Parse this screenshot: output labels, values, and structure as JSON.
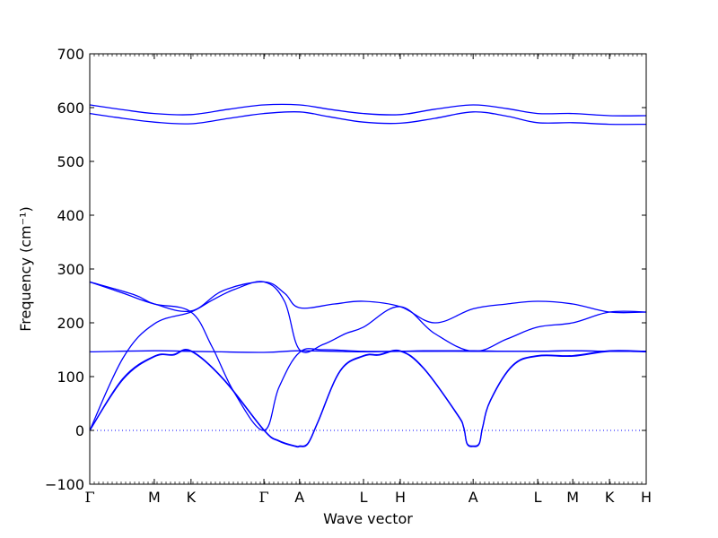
{
  "chart_data": {
    "type": "line",
    "title": "",
    "xlabel": "Wave vector",
    "ylabel": "Frequency (cm⁻¹)",
    "ylim": [
      -100,
      700
    ],
    "yticks": [
      -100,
      0,
      100,
      200,
      300,
      400,
      500,
      600,
      700
    ],
    "x_range": [
      0,
      1
    ],
    "high_symmetry_points": [
      {
        "label": "Γ",
        "x": 0.0
      },
      {
        "label": "M",
        "x": 0.116
      },
      {
        "label": "K",
        "x": 0.182
      },
      {
        "label": "Γ",
        "x": 0.313
      },
      {
        "label": "A",
        "x": 0.377
      },
      {
        "label": "L",
        "x": 0.492
      },
      {
        "label": "H",
        "x": 0.558
      },
      {
        "label": "A",
        "x": 0.689
      },
      {
        "label": "L",
        "x": 0.805
      },
      {
        "label": "M",
        "x": 0.868
      },
      {
        "label": "K",
        "x": 0.934
      },
      {
        "label": "H",
        "x": 1.0
      }
    ],
    "zero_line": {
      "y": 0,
      "style": "dotted"
    },
    "line_color": "#0000ff",
    "series": [
      {
        "x": [
          0,
          0.06,
          0.116,
          0.15,
          0.182,
          0.24,
          0.313,
          0.34,
          0.37,
          0.377,
          0.392,
          0.41,
          0.45,
          0.492,
          0.52,
          0.558,
          0.6,
          0.66,
          0.672,
          0.678,
          0.689,
          0.7,
          0.706,
          0.72,
          0.76,
          0.805,
          0.868,
          0.934,
          1.0
        ],
        "y": [
          0,
          95,
          137,
          140,
          147,
          95,
          0,
          -20,
          -30,
          -30,
          -25,
          15,
          110,
          138,
          140,
          147,
          115,
          30,
          5,
          -25,
          -30,
          -25,
          5,
          55,
          120,
          138,
          138,
          147,
          146
        ]
      },
      {
        "x": [
          0,
          0.06,
          0.116,
          0.15,
          0.182,
          0.24,
          0.313,
          0.34,
          0.37,
          0.377,
          0.392,
          0.41,
          0.45,
          0.492,
          0.52,
          0.558,
          0.6,
          0.66,
          0.672,
          0.678,
          0.689,
          0.7,
          0.706,
          0.72,
          0.76,
          0.805,
          0.868,
          0.934,
          1.0
        ],
        "y": [
          0,
          97,
          138,
          141,
          148,
          96,
          1,
          -19,
          -29,
          -29,
          -24,
          16,
          111,
          139,
          141,
          148,
          116,
          31,
          6,
          -24,
          -29,
          -24,
          6,
          56,
          121,
          139,
          139,
          148,
          147
        ]
      },
      {
        "x": [
          0,
          0.06,
          0.116,
          0.182,
          0.22,
          0.26,
          0.313,
          0.35,
          0.377,
          0.42,
          0.46,
          0.492,
          0.558,
          0.62,
          0.689,
          0.75,
          0.805,
          0.868,
          0.934,
          1.0
        ],
        "y": [
          0,
          135,
          198,
          220,
          242,
          262,
          276,
          240,
          150,
          160,
          180,
          192,
          230,
          180,
          147,
          170,
          192,
          200,
          220,
          220
        ]
      },
      {
        "x": [
          0,
          0.08,
          0.116,
          0.182,
          0.22,
          0.26,
          0.313,
          0.34,
          0.377,
          0.42,
          0.492,
          0.558,
          0.6,
          0.689,
          0.75,
          0.805,
          0.868,
          0.934,
          1.0
        ],
        "y": [
          276,
          252,
          235,
          220,
          155,
          70,
          0,
          80,
          145,
          150,
          147,
          147,
          148,
          148,
          147,
          147,
          148,
          147,
          147
        ]
      },
      {
        "x": [
          0,
          0.116,
          0.182,
          0.313,
          0.377,
          0.492,
          0.558,
          0.689,
          0.805,
          0.868,
          0.934,
          1.0
        ],
        "y": [
          146,
          148,
          147,
          145,
          148,
          146,
          147,
          147,
          147,
          148,
          147,
          147
        ]
      },
      {
        "x": [
          0,
          0.06,
          0.116,
          0.182,
          0.24,
          0.313,
          0.35,
          0.377,
          0.44,
          0.492,
          0.558,
          0.62,
          0.689,
          0.75,
          0.805,
          0.868,
          0.934,
          1.0
        ],
        "y": [
          276,
          255,
          235,
          222,
          260,
          276,
          255,
          228,
          235,
          240,
          230,
          200,
          226,
          235,
          240,
          235,
          220,
          220
        ]
      },
      {
        "x": [
          0,
          0.06,
          0.116,
          0.182,
          0.25,
          0.313,
          0.377,
          0.43,
          0.492,
          0.558,
          0.62,
          0.689,
          0.75,
          0.805,
          0.868,
          0.934,
          1.0
        ],
        "y": [
          589,
          580,
          573,
          570,
          580,
          589,
          592,
          583,
          573,
          571,
          580,
          592,
          584,
          572,
          572,
          569,
          569
        ]
      },
      {
        "x": [
          0,
          0.06,
          0.116,
          0.182,
          0.25,
          0.313,
          0.377,
          0.43,
          0.492,
          0.558,
          0.62,
          0.689,
          0.75,
          0.805,
          0.868,
          0.934,
          1.0
        ],
        "y": [
          605,
          596,
          589,
          587,
          597,
          605,
          605,
          597,
          589,
          587,
          597,
          605,
          598,
          589,
          589,
          585,
          585
        ]
      }
    ]
  }
}
